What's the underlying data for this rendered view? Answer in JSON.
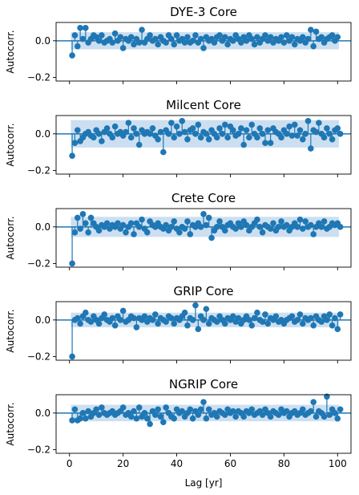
{
  "chart_data": {
    "type": "stem",
    "xlabel": "Lag [yr]",
    "ylabel": "Autocorr.",
    "x_ticks": [
      0,
      20,
      40,
      60,
      80,
      100
    ],
    "y_ticks": [
      0.0,
      -0.2
    ],
    "y_tick_labels": [
      "0.0",
      "−0.2"
    ],
    "xlim": [
      -5,
      105
    ],
    "ylim": [
      -0.22,
      0.1
    ],
    "confidence_color": "#c6dbef",
    "stem_color": "#1f77b4",
    "panels": [
      {
        "title": "DYE-3 Core",
        "conf_band": 0.047,
        "values": [
          -0.08,
          0.03,
          -0.03,
          0.07,
          0.01,
          0.07,
          -0.01,
          0.01,
          0.03,
          0.02,
          0.0,
          0.03,
          -0.01,
          0.0,
          0.01,
          -0.01,
          0.04,
          0.0,
          0.02,
          -0.04,
          0.01,
          0.0,
          0.02,
          -0.02,
          0.01,
          -0.01,
          0.06,
          -0.01,
          0.01,
          0.03,
          0.0,
          0.01,
          -0.02,
          0.02,
          0.0,
          -0.01,
          0.03,
          0.01,
          -0.02,
          0.03,
          0.0,
          0.01,
          -0.01,
          0.02,
          -0.01,
          0.0,
          0.03,
          -0.01,
          0.01,
          -0.04,
          0.02,
          0.0,
          0.01,
          -0.01,
          0.02,
          0.03,
          0.0,
          0.02,
          -0.02,
          0.01,
          0.0,
          0.03,
          0.01,
          -0.01,
          0.02,
          0.0,
          0.03,
          0.01,
          -0.02,
          0.02,
          -0.01,
          0.01,
          0.03,
          0.0,
          0.02,
          -0.01,
          0.01,
          0.0,
          0.02,
          -0.01,
          0.03,
          0.0,
          0.02,
          -0.02,
          0.01,
          0.0,
          0.02,
          -0.01,
          0.01,
          0.06,
          -0.03,
          0.05,
          0.01,
          0.02,
          -0.01,
          0.01,
          0.02,
          0.03,
          0.0,
          0.02
        ]
      },
      {
        "title": "Milcent Core",
        "conf_band": 0.075,
        "values": [
          -0.12,
          -0.05,
          0.02,
          -0.04,
          -0.02,
          0.0,
          0.01,
          -0.01,
          -0.02,
          0.02,
          0.0,
          -0.04,
          0.01,
          0.03,
          0.0,
          -0.02,
          0.04,
          0.0,
          0.01,
          -0.01,
          0.01,
          0.06,
          -0.02,
          0.03,
          0.0,
          -0.06,
          0.02,
          0.0,
          0.01,
          0.0,
          0.03,
          -0.01,
          -0.03,
          0.01,
          -0.1,
          0.02,
          0.0,
          0.06,
          -0.02,
          0.04,
          0.0,
          0.07,
          0.01,
          -0.03,
          0.02,
          0.03,
          0.0,
          0.05,
          -0.02,
          0.01,
          0.0,
          -0.03,
          0.02,
          0.0,
          -0.02,
          0.03,
          0.0,
          0.05,
          -0.02,
          0.04,
          0.02,
          -0.01,
          0.0,
          0.03,
          -0.06,
          0.02,
          -0.02,
          0.05,
          0.0,
          -0.02,
          0.03,
          0.0,
          -0.05,
          0.02,
          -0.05,
          0.03,
          0.01,
          0.0,
          -0.02,
          0.02,
          0.0,
          0.04,
          -0.01,
          0.05,
          -0.01,
          0.02,
          -0.03,
          0.0,
          0.07,
          -0.08,
          0.02,
          0.01,
          0.06,
          0.0,
          -0.02,
          0.03,
          0.0,
          -0.03,
          0.02,
          0.03,
          0.0
        ]
      },
      {
        "title": "Crete Core",
        "conf_band": 0.055,
        "values": [
          -0.2,
          -0.03,
          0.05,
          -0.01,
          0.07,
          0.02,
          -0.03,
          0.05,
          0.02,
          0.0,
          -0.02,
          0.01,
          0.0,
          0.02,
          -0.01,
          0.01,
          0.0,
          0.02,
          -0.01,
          0.01,
          -0.03,
          0.0,
          0.02,
          -0.04,
          0.02,
          0.0,
          0.04,
          -0.01,
          -0.03,
          0.03,
          0.01,
          0.0,
          0.02,
          0.0,
          -0.01,
          0.01,
          -0.02,
          0.0,
          0.03,
          -0.01,
          -0.03,
          0.0,
          -0.01,
          0.03,
          -0.04,
          0.01,
          0.0,
          0.02,
          0.0,
          0.07,
          0.01,
          0.05,
          -0.06,
          -0.02,
          0.0,
          0.03,
          0.0,
          -0.02,
          0.01,
          0.02,
          0.0,
          -0.01,
          0.02,
          0.0,
          0.03,
          0.01,
          -0.02,
          0.0,
          0.02,
          0.04,
          0.0,
          -0.03,
          0.01,
          0.0,
          -0.01,
          0.02,
          -0.02,
          0.0,
          0.03,
          0.0,
          0.01,
          -0.02,
          0.0,
          0.02,
          0.0,
          0.04,
          -0.01,
          0.03,
          0.0,
          0.01,
          -0.04,
          0.0,
          0.02,
          0.0,
          0.03,
          -0.01,
          0.0,
          0.02,
          0.01,
          0.02,
          0.0
        ]
      },
      {
        "title": "GRIP Core",
        "conf_band": 0.04,
        "values": [
          -0.2,
          0.0,
          0.01,
          -0.02,
          0.02,
          0.04,
          0.0,
          -0.01,
          0.02,
          0.0,
          -0.02,
          0.01,
          0.03,
          0.0,
          -0.01,
          0.01,
          -0.03,
          0.02,
          0.0,
          0.05,
          -0.01,
          0.0,
          0.02,
          0.01,
          -0.04,
          0.01,
          0.0,
          0.02,
          -0.01,
          0.01,
          0.0,
          0.03,
          -0.02,
          0.01,
          0.0,
          -0.01,
          0.02,
          0.01,
          -0.02,
          0.01,
          0.0,
          0.02,
          0.04,
          -0.03,
          0.01,
          0.0,
          0.08,
          -0.05,
          0.02,
          0.0,
          0.06,
          -0.02,
          0.01,
          0.0,
          -0.01,
          0.02,
          0.0,
          -0.02,
          0.01,
          0.0,
          0.02,
          -0.01,
          0.01,
          -0.02,
          0.0,
          0.02,
          0.0,
          -0.03,
          0.01,
          0.04,
          0.0,
          -0.01,
          0.03,
          -0.02,
          0.01,
          0.0,
          0.02,
          -0.01,
          0.0,
          -0.02,
          0.0,
          0.01,
          0.02,
          -0.01,
          0.0,
          0.03,
          -0.02,
          0.01,
          0.0,
          0.01,
          -0.03,
          0.02,
          0.0,
          -0.01,
          0.02,
          0.0,
          0.03,
          -0.03,
          0.01,
          -0.05,
          0.03
        ]
      },
      {
        "title": "NGRIP Core",
        "conf_band": 0.045,
        "values": [
          -0.04,
          0.02,
          -0.04,
          -0.03,
          0.0,
          -0.03,
          0.01,
          -0.02,
          0.0,
          0.02,
          -0.01,
          0.03,
          0.0,
          -0.01,
          0.0,
          0.01,
          -0.01,
          0.0,
          0.01,
          0.03,
          -0.01,
          0.0,
          -0.02,
          0.01,
          -0.03,
          0.03,
          -0.02,
          0.0,
          -0.03,
          -0.06,
          0.01,
          -0.01,
          0.02,
          -0.02,
          -0.05,
          0.03,
          0.0,
          -0.02,
          -0.03,
          0.02,
          0.0,
          0.01,
          -0.02,
          0.0,
          0.02,
          -0.03,
          0.01,
          -0.01,
          0.02,
          0.06,
          -0.03,
          0.02,
          -0.01,
          0.0,
          -0.02,
          0.01,
          0.0,
          -0.01,
          0.02,
          0.0,
          0.01,
          -0.02,
          0.01,
          0.0,
          -0.02,
          0.01,
          0.0,
          0.02,
          -0.01,
          0.0,
          0.01,
          -0.01,
          0.02,
          0.0,
          -0.02,
          0.01,
          0.0,
          -0.01,
          0.02,
          0.0,
          0.01,
          -0.02,
          0.0,
          0.01,
          -0.01,
          0.0,
          0.02,
          -0.01,
          0.0,
          0.01,
          0.06,
          -0.02,
          0.01,
          0.0,
          -0.02,
          0.09,
          -0.01,
          0.02,
          0.0,
          -0.03,
          0.02
        ]
      }
    ]
  }
}
